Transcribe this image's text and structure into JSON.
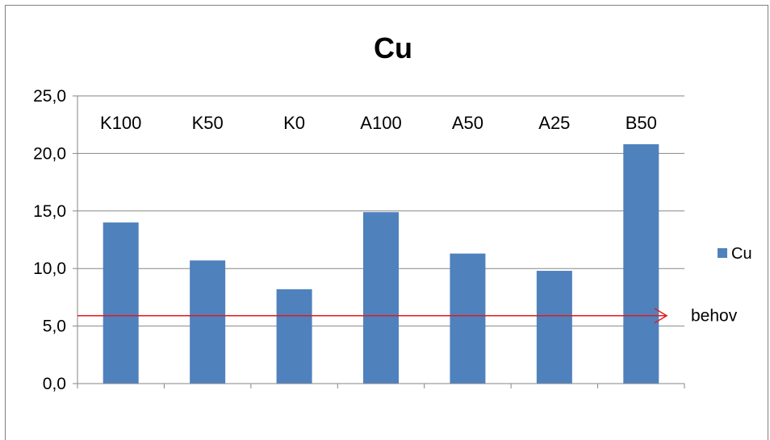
{
  "chart_data": {
    "type": "bar",
    "title": "Cu",
    "xlabel": "",
    "ylabel": "",
    "categories": [
      "K100",
      "K50",
      "K0",
      "A100",
      "A50",
      "A25",
      "B50"
    ],
    "series": [
      {
        "name": "Cu",
        "values": [
          14.0,
          10.7,
          8.2,
          14.9,
          11.3,
          9.8,
          20.8
        ],
        "color": "#4F81BD"
      }
    ],
    "ylim": [
      0,
      25
    ],
    "yticks": [
      "0,0",
      "5,0",
      "10,0",
      "15,0",
      "20,0",
      "25,0"
    ],
    "ytick_values": [
      0,
      5,
      10,
      15,
      20,
      25
    ],
    "grid": true,
    "legend": {
      "position": "right",
      "entries": [
        "Cu"
      ]
    },
    "reference_line": {
      "label": "behov",
      "value": 5.9,
      "color": "#E41A1C"
    }
  }
}
